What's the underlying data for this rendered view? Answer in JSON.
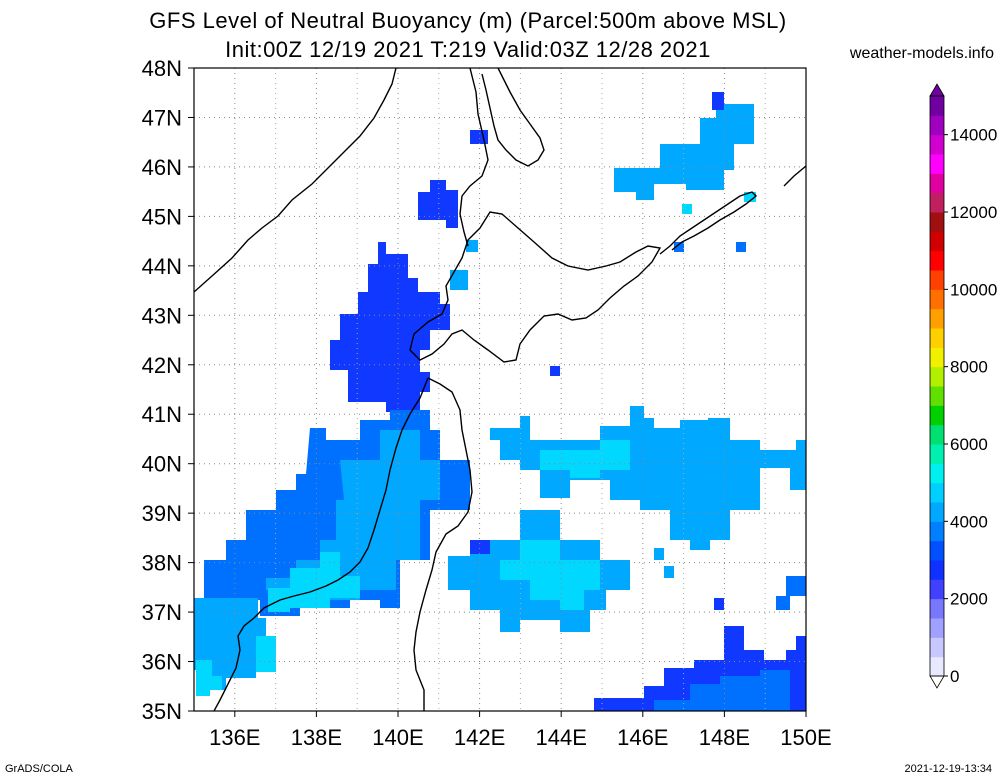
{
  "title": {
    "line1": "GFS Level of Neutral Buoyancy (m) (Parcel:500m above MSL)",
    "line2": "Init:00Z 12/19 2021 T:219 Valid:03Z 12/28 2021"
  },
  "site": "weather-models.info",
  "footer": {
    "left": "GrADS/COLA",
    "right": "2021-12-19-13:34"
  },
  "lat_labels": [
    "48N",
    "47N",
    "46N",
    "45N",
    "44N",
    "43N",
    "42N",
    "41N",
    "40N",
    "39N",
    "38N",
    "37N",
    "36N",
    "35N"
  ],
  "lon_labels": [
    "136E",
    "138E",
    "140E",
    "142E",
    "144E",
    "146E",
    "148E",
    "150E"
  ],
  "colorbar": {
    "labels": [
      "14000",
      "12000",
      "10000",
      "8000",
      "6000",
      "4000",
      "2000",
      "0"
    ],
    "colors": [
      "#e8e8ff",
      "#c8c8ff",
      "#a0a0ff",
      "#7878ff",
      "#4040ff",
      "#1030ff",
      "#0050ff",
      "#0080ff",
      "#00a8ff",
      "#00d0ff",
      "#00f0f0",
      "#00f0b0",
      "#00e070",
      "#00d000",
      "#60e000",
      "#b0f000",
      "#f0f000",
      "#ffd000",
      "#ffa000",
      "#ff7000",
      "#ff4000",
      "#ff0000",
      "#d00000",
      "#a01010",
      "#c02060",
      "#e000a0",
      "#ff00ff",
      "#d000d0",
      "#a000c0",
      "#7000a0"
    ],
    "range": [
      0,
      15000
    ]
  },
  "map": {
    "lon_range": [
      135,
      150
    ],
    "lat_range": [
      35,
      48
    ],
    "grid": "dotted",
    "field_colors": {
      "deep_blue": "#1038ff",
      "blue": "#0070ff",
      "sky": "#00a8ff",
      "cyan": "#00d8ff"
    }
  }
}
